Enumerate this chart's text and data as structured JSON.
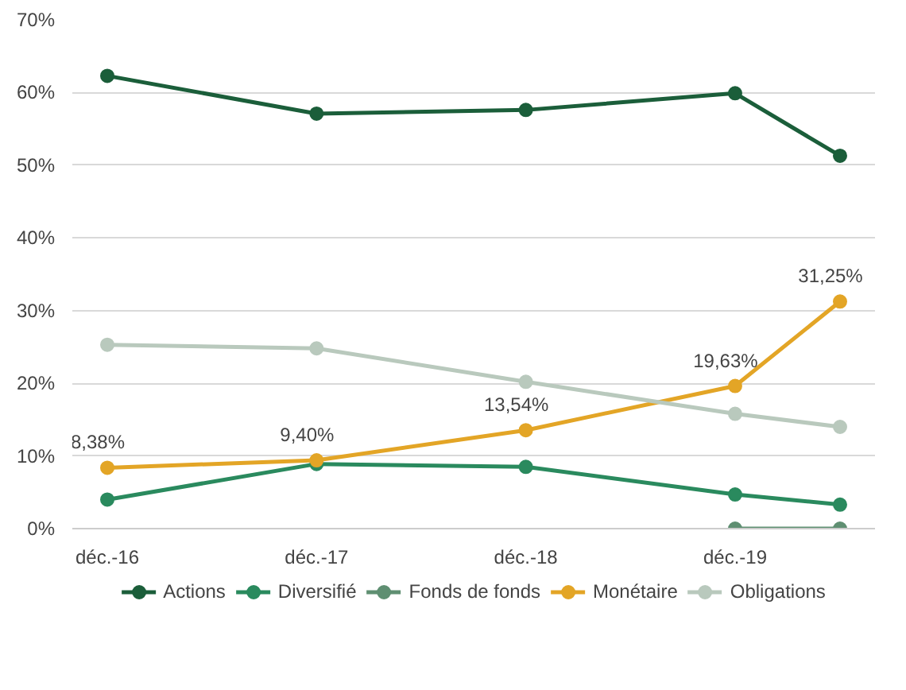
{
  "chart_data": {
    "type": "line",
    "x": [
      "2016-12",
      "2017-12",
      "2018-12",
      "2019-12",
      "2020-06"
    ],
    "series": [
      {
        "name": "Actions",
        "color": "#1b5e3a",
        "values": [
          62.3,
          57.1,
          57.6,
          59.9,
          51.3
        ]
      },
      {
        "name": "Diversifié",
        "color": "#2a8a5e",
        "values": [
          4.0,
          8.9,
          8.5,
          4.7,
          3.3
        ]
      },
      {
        "name": "Fonds de fonds",
        "color": "#5f8f72",
        "x": [
          "2019-12",
          "2020-06"
        ],
        "values": [
          0,
          0
        ]
      },
      {
        "name": "Monétaire",
        "color": "#e3a526",
        "values": [
          8.38,
          9.4,
          13.54,
          19.63,
          31.25
        ],
        "value_labels": [
          "8,38%",
          "9,40%",
          "13,54%",
          "19,63%",
          "31,25%"
        ]
      },
      {
        "name": "Obligations",
        "color": "#b9c9bd",
        "values": [
          25.3,
          24.8,
          20.2,
          15.8,
          14.0
        ]
      }
    ],
    "xlim": [
      "2016-10",
      "2020-08"
    ],
    "xticks": [
      {
        "value": "2016-12",
        "label": "déc.-16"
      },
      {
        "value": "2017-12",
        "label": "déc.-17"
      },
      {
        "value": "2018-12",
        "label": "déc.-18"
      },
      {
        "value": "2019-12",
        "label": "déc.-19"
      }
    ],
    "ylim": [
      0,
      70
    ],
    "yticks": [
      {
        "value": 0,
        "label": "0%"
      },
      {
        "value": 10,
        "label": "10%"
      },
      {
        "value": 20,
        "label": "20%"
      },
      {
        "value": 30,
        "label": "30%"
      },
      {
        "value": 40,
        "label": "40%"
      },
      {
        "value": 50,
        "label": "50%"
      },
      {
        "value": 60,
        "label": "60%"
      },
      {
        "value": 70,
        "label": "70%"
      }
    ],
    "grid": "y",
    "legend": "bottom",
    "marker": "circle",
    "line_style": "solid"
  }
}
